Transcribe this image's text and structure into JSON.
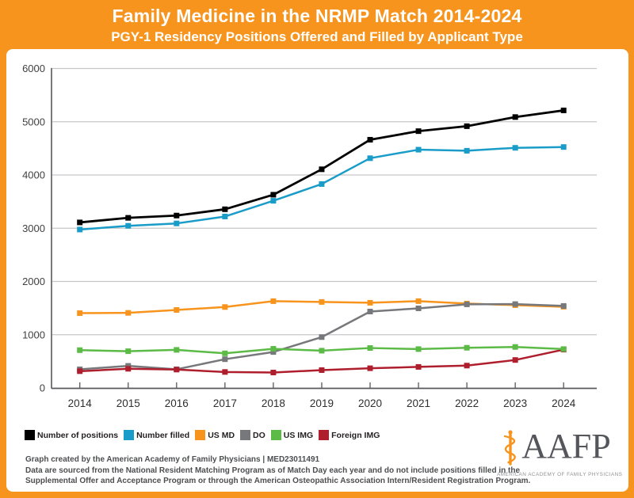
{
  "header": {
    "title": "Family Medicine in the NRMP Match 2014-2024",
    "subtitle": "PGY-1 Residency Positions Offered and Filled by Applicant Type"
  },
  "chart_data": {
    "type": "line",
    "title": "Family Medicine in the NRMP Match 2014-2024",
    "subtitle": "PGY-1 Residency Positions Offered and Filled by Applicant Type",
    "categories": [
      "2014",
      "2015",
      "2016",
      "2017",
      "2018",
      "2019",
      "2020",
      "2021",
      "2022",
      "2023",
      "2024"
    ],
    "series": [
      {
        "name": "Number of positions",
        "color": "#000000",
        "values": [
          3109,
          3195,
          3238,
          3356,
          3629,
          4107,
          4662,
          4823,
          4916,
          5088,
          5213
        ]
      },
      {
        "name": "Number filled",
        "color": "#1A9CC9",
        "values": [
          2975,
          3045,
          3090,
          3220,
          3515,
          3830,
          4315,
          4475,
          4455,
          4510,
          4525
        ]
      },
      {
        "name": "US MD",
        "color": "#F7941D",
        "values": [
          1405,
          1410,
          1465,
          1520,
          1630,
          1615,
          1600,
          1630,
          1585,
          1555,
          1525
        ]
      },
      {
        "name": "DO",
        "color": "#77787B",
        "values": [
          350,
          415,
          350,
          540,
          675,
          955,
          1435,
          1495,
          1570,
          1575,
          1540
        ]
      },
      {
        "name": "US IMG",
        "color": "#5CBA47",
        "values": [
          710,
          690,
          715,
          650,
          735,
          700,
          750,
          730,
          755,
          770,
          730
        ]
      },
      {
        "name": "Foreign IMG",
        "color": "#AF1E2D",
        "values": [
          315,
          360,
          345,
          300,
          290,
          335,
          370,
          395,
          420,
          525,
          720
        ]
      }
    ],
    "xlabel": "",
    "ylabel": "",
    "ylim": [
      0,
      6000
    ],
    "yticks": [
      0,
      1000,
      2000,
      3000,
      4000,
      5000,
      6000
    ],
    "grid": "horizontal",
    "marker": "square",
    "legend_position": "bottom-left",
    "draw_order": [
      0,
      1,
      2,
      3,
      5,
      4
    ]
  },
  "footer": {
    "lines": [
      "Graph created by the American Academy of Family Physicians | MED23011491",
      "Data are sourced from the National Resident Matching Program as of Match Day each year and do not include positions filled in the",
      "Supplemental Offer and Acceptance Program or through the American Osteopathic Association Intern/Resident Registration Program."
    ]
  },
  "logo": {
    "abbr": "AAFP",
    "tagline": "AMERICAN ACADEMY OF FAMILY PHYSICIANS",
    "icon": "caduceus-staff-icon"
  },
  "colors": {
    "brand_orange": "#F7941D",
    "panel_bg": "#FFFFFF",
    "gridline": "#C6C7C9",
    "axis": "#58595B",
    "tick_label": "#414042"
  }
}
